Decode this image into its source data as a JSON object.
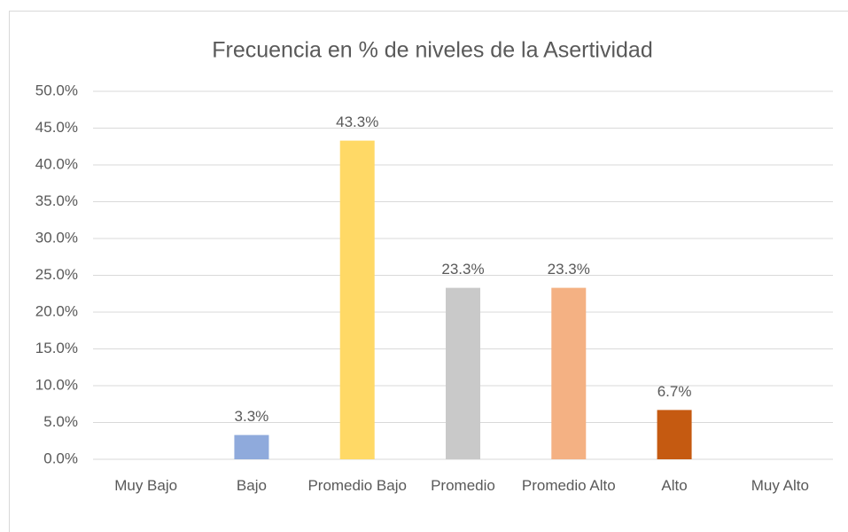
{
  "chart_data": {
    "type": "bar",
    "title": "Frecuencia en % de niveles de la Asertividad",
    "categories": [
      "Muy Bajo",
      "Bajo",
      "Promedio Bajo",
      "Promedio",
      "Promedio Alto",
      "Alto",
      "Muy Alto"
    ],
    "values": [
      0,
      3.3,
      43.3,
      23.3,
      23.3,
      6.7,
      0
    ],
    "value_labels": [
      null,
      "3.3%",
      "43.3%",
      "23.3%",
      "23.3%",
      "6.7%",
      null
    ],
    "colors": [
      null,
      "#8faadc",
      "#ffd966",
      "#c9c9c9",
      "#f4b183",
      "#c55a11",
      null
    ],
    "ylim": [
      0,
      50
    ],
    "yticks": [
      {
        "value": 0,
        "label": "0.0%"
      },
      {
        "value": 5,
        "label": "5.0%"
      },
      {
        "value": 10,
        "label": "10.0%"
      },
      {
        "value": 15,
        "label": "15.0%"
      },
      {
        "value": 20,
        "label": "20.0%"
      },
      {
        "value": 25,
        "label": "25.0%"
      },
      {
        "value": 30,
        "label": "30.0%"
      },
      {
        "value": 35,
        "label": "35.0%"
      },
      {
        "value": 40,
        "label": "40.0%"
      },
      {
        "value": 45,
        "label": "45.0%"
      },
      {
        "value": 50,
        "label": "50.0%"
      }
    ],
    "grid": true
  }
}
